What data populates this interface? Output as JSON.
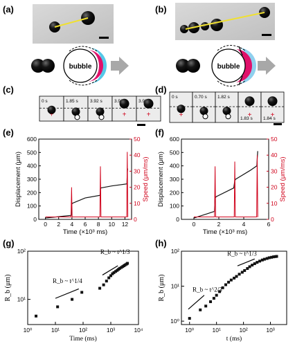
{
  "panel_labels": {
    "a": "(a)",
    "b": "(b)",
    "c": "(c)",
    "d": "(d)",
    "e": "(e)",
    "f": "(f)",
    "g": "(g)",
    "h": "(h)"
  },
  "bubble_label": "bubble",
  "strip_c": {
    "times": [
      "0 s",
      "1.85 s",
      "3.92 s",
      "3.96 s",
      "3.99 s"
    ]
  },
  "strip_d": {
    "times": [
      "0 s",
      "0.70 s",
      "1.82 s",
      "1.83 s",
      "1.84 s"
    ]
  },
  "colors": {
    "black": "#111111",
    "red": "#d0021b",
    "yellow": "#f0e030",
    "magenta": "#e0106a",
    "cyan": "#55c8e8",
    "lightblue": "#8fd0ee",
    "arrow": "#a8a8a8"
  },
  "chart_data": [
    {
      "panel": "e",
      "type": "line",
      "xlabel": "Time (×10³ ms)",
      "ylabel": "Displacement (μm)",
      "y2label": "Speed (μm/ms)",
      "xlim": [
        -1,
        13
      ],
      "xticks": [
        "0",
        "2",
        "4",
        "6",
        "8",
        "10",
        "12"
      ],
      "ylim": [
        0,
        600
      ],
      "yticks": [
        "0",
        "100",
        "200",
        "300",
        "400",
        "500",
        "600"
      ],
      "y2lim": [
        0,
        50
      ],
      "y2ticks": [
        "0",
        "10",
        "20",
        "30",
        "40",
        "50"
      ],
      "series": [
        {
          "axis": "left",
          "color": "#111111",
          "x": [
            0,
            2,
            3.9,
            3.95,
            4.05,
            6,
            8.25,
            8.3,
            8.4,
            10,
            12.3,
            12.35,
            12.4
          ],
          "y": [
            10,
            20,
            30,
            110,
            120,
            160,
            180,
            230,
            235,
            250,
            265,
            340,
            380
          ]
        },
        {
          "axis": "right",
          "color": "#d0021b",
          "spikes": [
            {
              "x": 3.95,
              "y": 20
            },
            {
              "x": 8.3,
              "y": 33
            },
            {
              "x": 12.35,
              "y": 42
            }
          ],
          "baseline": 1.5
        }
      ]
    },
    {
      "panel": "f",
      "type": "line",
      "xlabel": "Time (×10³ ms)",
      "ylabel": "Displacement (μm)",
      "y2label": "Speed (μm/ms)",
      "xlim": [
        -1,
        6
      ],
      "xticks": [
        "0",
        "2",
        "4",
        "6"
      ],
      "ylim": [
        0,
        600
      ],
      "yticks": [
        "0",
        "100",
        "200",
        "300",
        "400",
        "500",
        "600"
      ],
      "y2lim": [
        0,
        50
      ],
      "y2ticks": [
        "0",
        "10",
        "20",
        "30",
        "40",
        "50"
      ],
      "series": [
        {
          "axis": "left",
          "color": "#111111",
          "x": [
            0,
            1,
            1.65,
            1.7,
            1.8,
            3.2,
            3.28,
            3.35,
            4.5,
            5.05,
            5.08,
            5.12
          ],
          "y": [
            10,
            40,
            60,
            160,
            170,
            235,
            290,
            300,
            365,
            400,
            450,
            510
          ]
        },
        {
          "axis": "right",
          "color": "#d0021b",
          "spikes": [
            {
              "x": 1.7,
              "y": 33
            },
            {
              "x": 3.28,
              "y": 36
            },
            {
              "x": 5.08,
              "y": 40
            }
          ],
          "baseline": 1.5
        }
      ]
    },
    {
      "panel": "g",
      "type": "scatter",
      "xlabel": "Time (ms)",
      "ylabel": "R_b (μm)",
      "xscale": "log",
      "yscale": "log",
      "xlim": [
        1,
        10000
      ],
      "ylim": [
        3,
        100
      ],
      "xticks": [
        "10⁰",
        "10¹",
        "10²",
        "10³",
        "10⁴"
      ],
      "yticks": [
        "10¹",
        "10²"
      ],
      "annotations": [
        "R_b ~ t^1/4",
        "R_b ~ t^1/3"
      ],
      "x": [
        2,
        12,
        40,
        90,
        400,
        550,
        700,
        850,
        1000,
        1150,
        1300,
        1500,
        1700,
        1900,
        2100,
        2400,
        2700,
        3000,
        3300,
        3700,
        4000
      ],
      "y": [
        4.5,
        7,
        10,
        14,
        17,
        20,
        24,
        28,
        31,
        34,
        36,
        38,
        40,
        42,
        44,
        46,
        48,
        50,
        52,
        54,
        56
      ]
    },
    {
      "panel": "h",
      "type": "scatter",
      "xlabel": "t (ms)",
      "ylabel": "R_b (μm)",
      "xscale": "log",
      "yscale": "log",
      "xlim": [
        0.5,
        4000
      ],
      "ylim": [
        0.8,
        100
      ],
      "xticks": [
        "10⁰",
        "10¹",
        "10²",
        "10³"
      ],
      "yticks": [
        "10⁰",
        "10¹",
        "10²"
      ],
      "annotations": [
        "R_b ~ t^2/3",
        "R_b ~ t^1/3"
      ],
      "x": [
        1,
        2.5,
        4,
        6,
        8,
        10,
        13,
        17,
        22,
        28,
        35,
        45,
        55,
        70,
        90,
        110,
        140,
        170,
        210,
        260,
        320,
        400,
        500,
        600,
        750,
        900,
        1100,
        1300,
        1500,
        1700
      ],
      "y": [
        1.2,
        2.1,
        2.7,
        3.6,
        4.5,
        5.5,
        7,
        9,
        11,
        13,
        15,
        17,
        19,
        22,
        25,
        28,
        32,
        36,
        40,
        44,
        48,
        52,
        56,
        59,
        62,
        65,
        67,
        69,
        70,
        71
      ]
    }
  ]
}
